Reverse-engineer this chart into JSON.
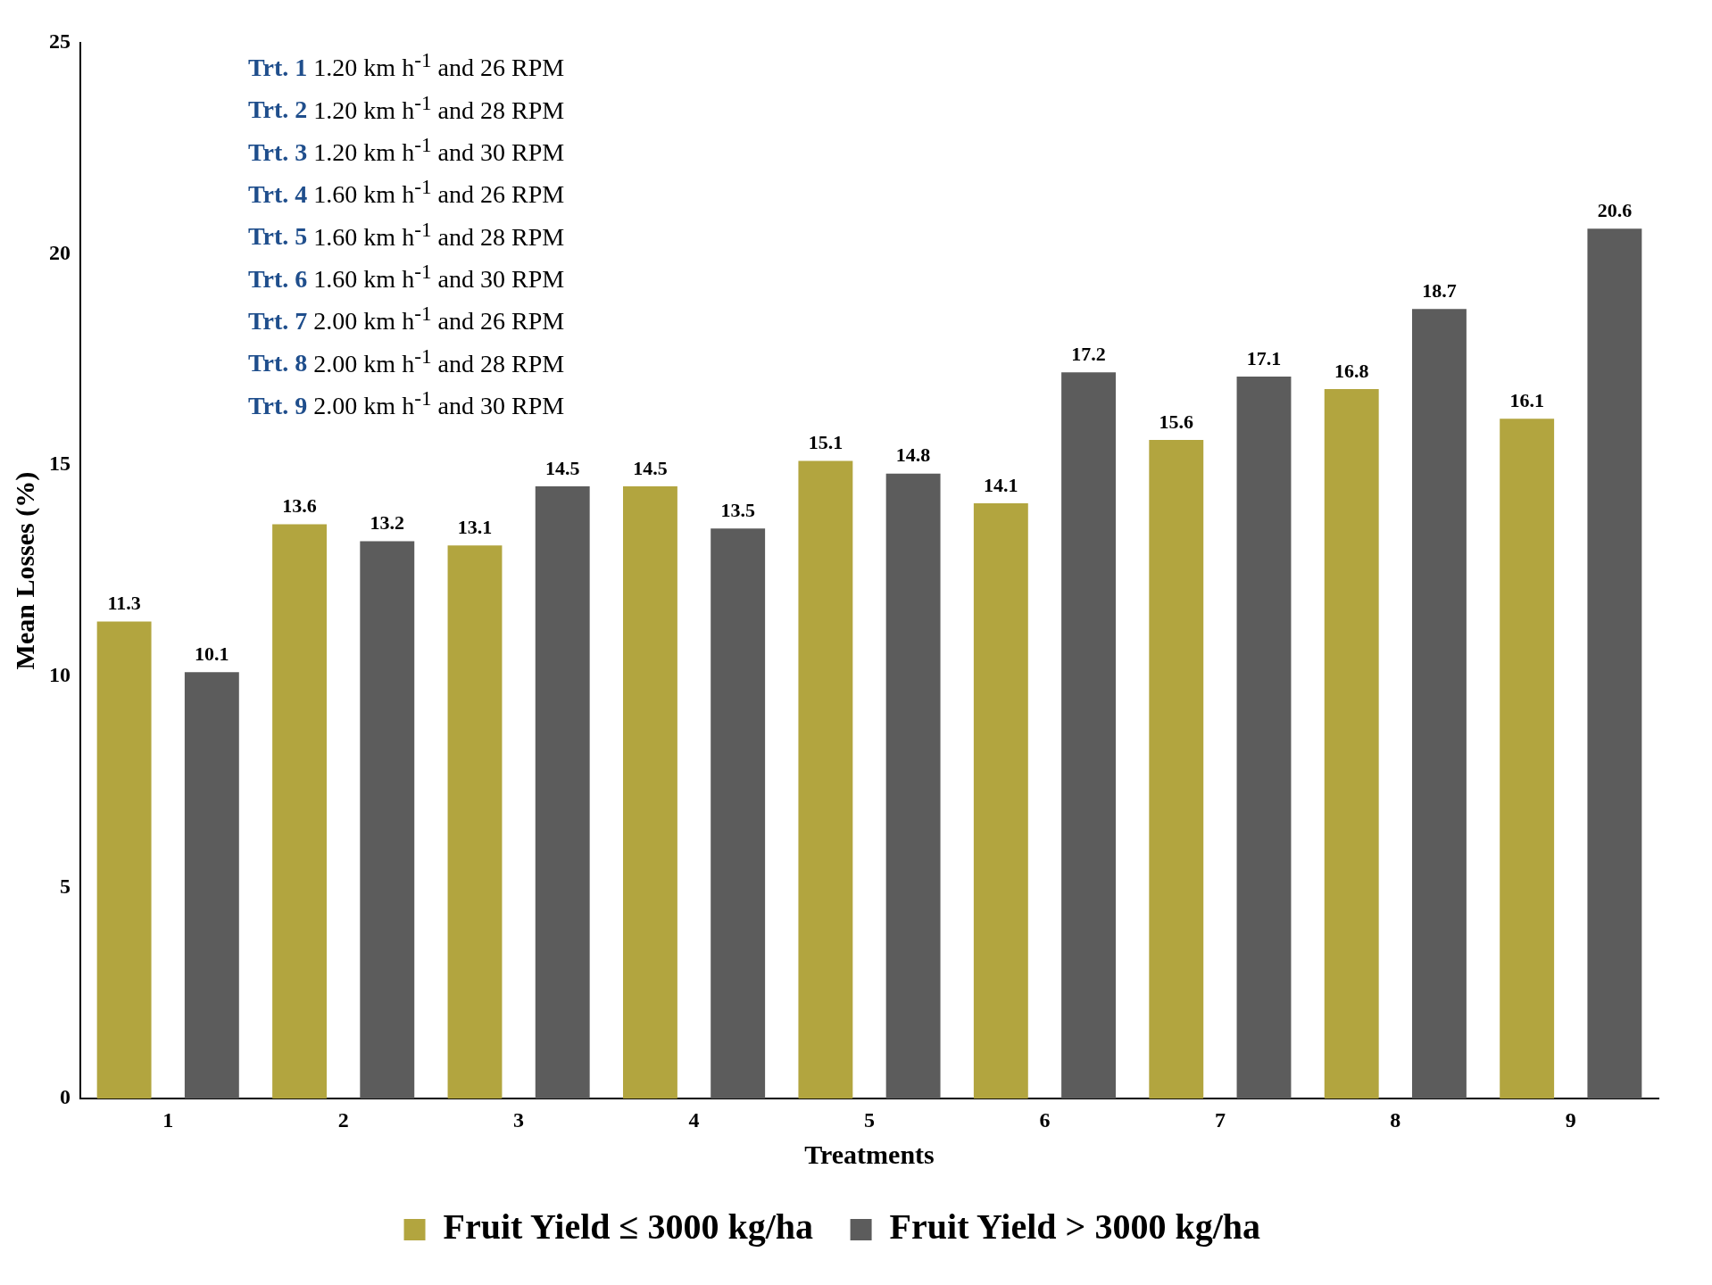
{
  "chart_data": {
    "type": "bar",
    "xlabel": "Treatments",
    "ylabel": "Mean Losses (%)",
    "categories": [
      "1",
      "2",
      "3",
      "4",
      "5",
      "6",
      "7",
      "8",
      "9"
    ],
    "series": [
      {
        "name": "Fruit Yield ≤ 3000 kg/ha",
        "color": "#b2a53f",
        "values": [
          11.3,
          13.6,
          13.1,
          14.5,
          15.1,
          14.1,
          15.6,
          16.8,
          16.1
        ]
      },
      {
        "name": "Fruit Yield > 3000 kg/ha",
        "color": "#5c5c5c",
        "values": [
          10.1,
          13.2,
          14.5,
          13.5,
          14.8,
          17.2,
          17.1,
          18.7,
          20.6
        ]
      }
    ],
    "ylim": [
      0,
      25
    ],
    "yticks": [
      0,
      5,
      10,
      15,
      20,
      25
    ],
    "grid": false,
    "legend": "bottom",
    "data_labels": true,
    "annotations": [
      "Trt. 1 1.20 km h$^{-1}$ and 26 RPM",
      "Trt. 2 1.20 km h$^{-1}$ and 28 RPM",
      "Trt. 3 1.20 km h$^{-1}$ and 30 RPM",
      "Trt. 4 1.60 km h$^{-1}$ and 26 RPM",
      "Trt. 5 1.60 km h$^{-1}$ and 28 RPM",
      "Trt. 6 1.60 km h$^{-1}$ and 30 RPM",
      "Trt. 7 2.00 km h$^{-1}$ and 26 RPM",
      "Trt. 8 2.00 km h$^{-1}$ and 28 RPM",
      "Trt. 9 2.00 km h$^{-1}$ and 30 RPM"
    ]
  }
}
